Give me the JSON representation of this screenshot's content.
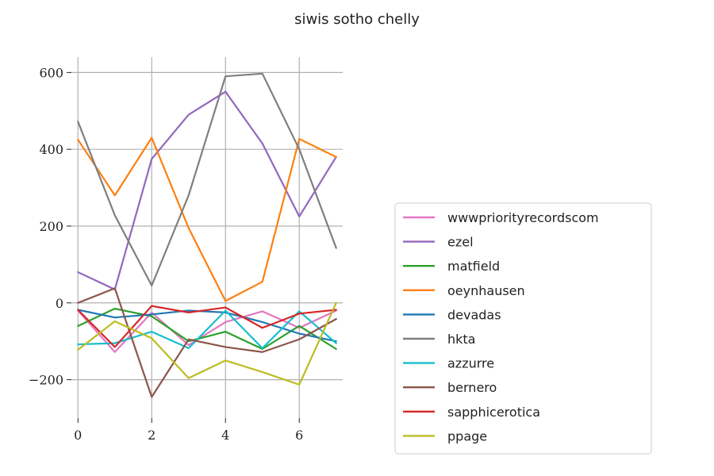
{
  "chart_data": {
    "type": "line",
    "title": "siwis sotho chelly",
    "xlabel": "",
    "ylabel": "",
    "x": [
      0,
      1,
      2,
      3,
      4,
      5,
      6,
      7
    ],
    "xlim": [
      -0.35,
      7.35
    ],
    "ylim": [
      -300,
      640
    ],
    "xticks": [
      0,
      2,
      4,
      6
    ],
    "yticks": [
      -200,
      0,
      200,
      400,
      600
    ],
    "ytick_labels": [
      "−200",
      "0",
      "200",
      "400",
      "600"
    ],
    "grid": true,
    "legend_position": "right",
    "series": [
      {
        "name": "wwwpriorityrecordscom",
        "color": "#e377c2",
        "values": [
          -20,
          -128,
          -25,
          -110,
          -50,
          -22,
          -65,
          -20
        ]
      },
      {
        "name": "ezel",
        "color": "#9467bd",
        "values": [
          80,
          35,
          375,
          490,
          550,
          415,
          225,
          380
        ]
      },
      {
        "name": "matfield",
        "color": "#2ca02c",
        "values": [
          -60,
          -15,
          -35,
          -100,
          -75,
          -120,
          -60,
          -120
        ]
      },
      {
        "name": "oeynhausen",
        "color": "#ff7f0e",
        "values": [
          425,
          280,
          430,
          195,
          5,
          55,
          427,
          380
        ]
      },
      {
        "name": "devadas",
        "color": "#1f77b4",
        "values": [
          -18,
          -38,
          -30,
          -20,
          -25,
          -50,
          -80,
          -100
        ]
      },
      {
        "name": "hkta",
        "color": "#7f7f7f",
        "values": [
          472,
          228,
          45,
          280,
          590,
          597,
          400,
          143
        ]
      },
      {
        "name": "azzurre",
        "color": "#17becf",
        "values": [
          -108,
          -105,
          -75,
          -118,
          -20,
          -118,
          -22,
          -105
        ]
      },
      {
        "name": "bernero",
        "color": "#8c564b",
        "values": [
          0,
          38,
          -245,
          -95,
          -115,
          -128,
          -95,
          -42
        ]
      },
      {
        "name": "sapphicerotica",
        "color": "#d62728",
        "values": [
          -18,
          -115,
          -8,
          -25,
          -12,
          -65,
          -28,
          -18
        ]
      },
      {
        "name": "ppage",
        "color": "#bcbd22",
        "values": [
          -122,
          -48,
          -92,
          -196,
          -150,
          -180,
          -213,
          0
        ]
      }
    ]
  }
}
